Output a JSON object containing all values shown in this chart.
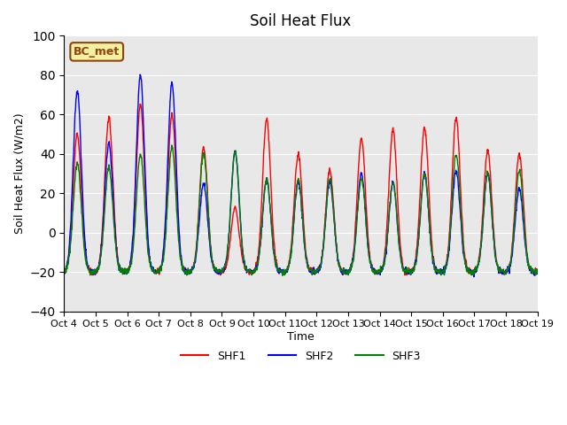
{
  "title": "Soil Heat Flux",
  "ylabel": "Soil Heat Flux (W/m2)",
  "xlabel": "Time",
  "xlim_days": [
    0,
    15
  ],
  "ylim": [
    -40,
    100
  ],
  "yticks": [
    -40,
    -20,
    0,
    20,
    40,
    60,
    80,
    100
  ],
  "colors": {
    "SHF1": "red",
    "SHF2": "blue",
    "SHF3": "green"
  },
  "linewidth": 1.0,
  "bg_color": "#e8e8e8",
  "plot_bg": "#e8e8e8",
  "annotation_text": "BC_met",
  "annotation_color": "#8B4513",
  "annotation_bg": "#f5f0a0",
  "xtick_labels": [
    "Oct 4",
    "Oct 5",
    "Oct 6",
    "Oct 7",
    "Oct 8",
    "Oct 9",
    "Oct 10",
    "Oct 11",
    "Oct 12",
    "Oct 13",
    "Oct 14",
    "Oct 15",
    "Oct 16",
    "Oct 17",
    "Oct 18",
    "Oct 19"
  ],
  "legend_labels": [
    "SHF1",
    "SHF2",
    "SHF3"
  ]
}
